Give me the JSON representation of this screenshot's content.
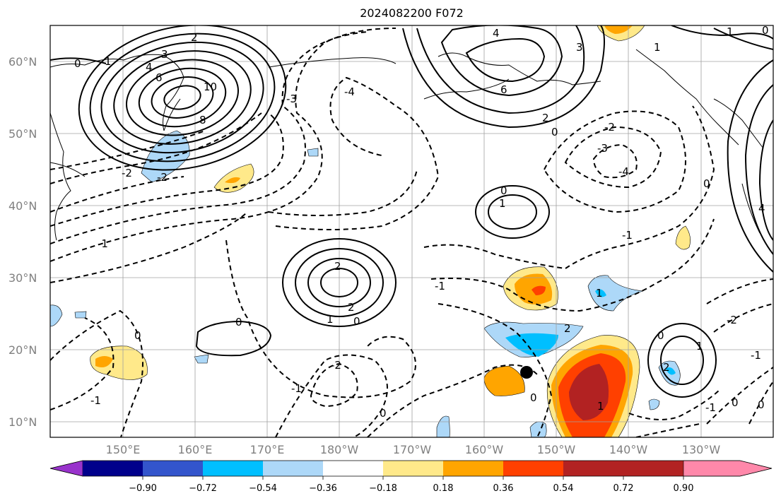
{
  "title": "2024082200 F072",
  "lat_labels": [
    "60°N",
    "50°N",
    "40°N",
    "30°N",
    "20°N",
    "10°N"
  ],
  "lon_labels": [
    "150°E",
    "160°E",
    "170°E",
    "180°W",
    "170°W",
    "160°W",
    "150°W",
    "140°W",
    "130°W"
  ],
  "colorbar": {
    "colors": [
      "#9933cc",
      "#00008b",
      "#3355cc",
      "#00bfff",
      "#add8f8",
      "#ffffff",
      "#ffe98a",
      "#ffa500",
      "#ff4000",
      "#b22222",
      "#ff88aa"
    ],
    "tick_labels": [
      "−0.90",
      "−0.72",
      "−0.54",
      "−0.36",
      "−0.18",
      "0.18",
      "0.36",
      "0.54",
      "0.72",
      "0.90"
    ]
  },
  "contour_labels": [
    "0",
    "1",
    "2",
    "3",
    "4",
    "6",
    "8",
    "10",
    "-1",
    "-2",
    "-3",
    "-4"
  ],
  "marker": "storm-center-dot"
}
